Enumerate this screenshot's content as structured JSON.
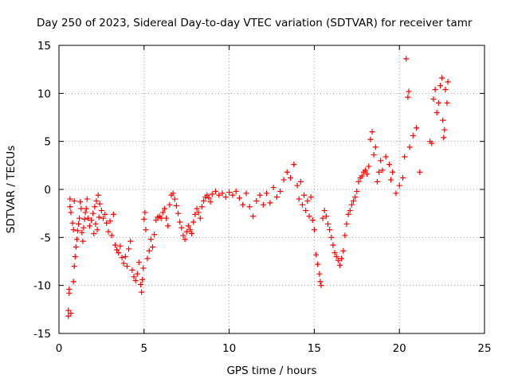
{
  "chart_data": {
    "type": "scatter",
    "title": "Day 250 of 2023, Sidereal Day-to-day VTEC variation (SDTVAR) for receiver tamr",
    "xlabel": "GPS time / hours",
    "ylabel": "SDTVAR / TECUs",
    "xlim": [
      0,
      25
    ],
    "ylim": [
      -15,
      15
    ],
    "xticks": [
      0,
      5,
      10,
      15,
      20,
      25
    ],
    "yticks": [
      -15,
      -10,
      -5,
      0,
      5,
      10,
      15
    ],
    "xtick_labels": [
      "0",
      "5",
      "10",
      "15",
      "20",
      "25"
    ],
    "ytick_labels": [
      "-15",
      "-10",
      "-5",
      "0",
      "5",
      "10",
      "15"
    ],
    "grid": true,
    "marker": "+",
    "color": "#ff0000",
    "series": [
      {
        "name": "SDTVAR",
        "points": [
          [
            0.55,
            -13.2
          ],
          [
            0.55,
            -12.6
          ],
          [
            0.6,
            -10.8
          ],
          [
            0.6,
            -10.4
          ],
          [
            0.65,
            -1.0
          ],
          [
            0.65,
            -1.8
          ],
          [
            0.7,
            -12.9
          ],
          [
            0.7,
            -2.4
          ],
          [
            0.8,
            -3.5
          ],
          [
            0.85,
            -4.2
          ],
          [
            0.85,
            -9.6
          ],
          [
            0.9,
            -8.0
          ],
          [
            0.9,
            -1.2
          ],
          [
            0.95,
            -7.0
          ],
          [
            1.0,
            -6.0
          ],
          [
            1.05,
            -5.2
          ],
          [
            1.1,
            -4.3
          ],
          [
            1.15,
            -3.6
          ],
          [
            1.2,
            -3.0
          ],
          [
            1.25,
            -1.3
          ],
          [
            1.3,
            -2.0
          ],
          [
            1.35,
            -4.5
          ],
          [
            1.4,
            -5.4
          ],
          [
            1.45,
            -4.0
          ],
          [
            1.5,
            -3.1
          ],
          [
            1.55,
            -2.4
          ],
          [
            1.6,
            -2.0
          ],
          [
            1.65,
            -1.0
          ],
          [
            1.7,
            -3.0
          ],
          [
            1.8,
            -3.8
          ],
          [
            1.9,
            -3.2
          ],
          [
            2.0,
            -2.5
          ],
          [
            2.05,
            -4.6
          ],
          [
            2.1,
            -1.8
          ],
          [
            2.15,
            -3.6
          ],
          [
            2.2,
            -1.2
          ],
          [
            2.25,
            -4.2
          ],
          [
            2.3,
            -0.6
          ],
          [
            2.35,
            -2.9
          ],
          [
            2.4,
            -1.5
          ],
          [
            2.5,
            -2.2
          ],
          [
            2.6,
            -3.0
          ],
          [
            2.7,
            -2.6
          ],
          [
            2.8,
            -3.5
          ],
          [
            2.9,
            -4.4
          ],
          [
            3.0,
            -3.3
          ],
          [
            3.1,
            -4.8
          ],
          [
            3.2,
            -2.6
          ],
          [
            3.3,
            -5.8
          ],
          [
            3.4,
            -6.3
          ],
          [
            3.5,
            -6.6
          ],
          [
            3.6,
            -5.9
          ],
          [
            3.7,
            -7.1
          ],
          [
            3.8,
            -7.7
          ],
          [
            3.9,
            -7.0
          ],
          [
            4.0,
            -8.0
          ],
          [
            4.1,
            -6.2
          ],
          [
            4.2,
            -5.4
          ],
          [
            4.3,
            -8.4
          ],
          [
            4.4,
            -9.1
          ],
          [
            4.5,
            -9.5
          ],
          [
            4.6,
            -8.8
          ],
          [
            4.7,
            -7.6
          ],
          [
            4.8,
            -9.9
          ],
          [
            4.85,
            -10.7
          ],
          [
            4.9,
            -9.4
          ],
          [
            4.95,
            -8.2
          ],
          [
            5.0,
            -3.1
          ],
          [
            5.05,
            -2.4
          ],
          [
            5.1,
            -4.2
          ],
          [
            5.2,
            -7.2
          ],
          [
            5.3,
            -6.4
          ],
          [
            5.4,
            -5.2
          ],
          [
            5.5,
            -6.0
          ],
          [
            5.6,
            -4.7
          ],
          [
            5.7,
            -3.2
          ],
          [
            5.8,
            -2.9
          ],
          [
            5.9,
            -2.8
          ],
          [
            6.0,
            -3.0
          ],
          [
            6.1,
            -2.4
          ],
          [
            6.2,
            -2.0
          ],
          [
            6.3,
            -3.0
          ],
          [
            6.4,
            -3.8
          ],
          [
            6.5,
            -1.6
          ],
          [
            6.6,
            -0.6
          ],
          [
            6.7,
            -0.4
          ],
          [
            6.8,
            -1.0
          ],
          [
            6.9,
            -1.7
          ],
          [
            7.0,
            -2.5
          ],
          [
            7.1,
            -3.4
          ],
          [
            7.2,
            -4.0
          ],
          [
            7.3,
            -4.8
          ],
          [
            7.4,
            -5.2
          ],
          [
            7.5,
            -4.4
          ],
          [
            7.6,
            -3.8
          ],
          [
            7.7,
            -4.2
          ],
          [
            7.8,
            -4.6
          ],
          [
            7.9,
            -3.4
          ],
          [
            8.0,
            -2.6
          ],
          [
            8.1,
            -2.0
          ],
          [
            8.2,
            -2.4
          ],
          [
            8.3,
            -3.0
          ],
          [
            8.4,
            -1.8
          ],
          [
            8.5,
            -1.2
          ],
          [
            8.6,
            -0.8
          ],
          [
            8.7,
            -0.6
          ],
          [
            8.8,
            -0.9
          ],
          [
            8.9,
            -1.3
          ],
          [
            9.0,
            -0.5
          ],
          [
            9.2,
            -0.2
          ],
          [
            9.4,
            -0.6
          ],
          [
            9.6,
            -0.4
          ],
          [
            9.8,
            -0.8
          ],
          [
            10.0,
            -0.3
          ],
          [
            10.2,
            -0.6
          ],
          [
            10.4,
            -0.2
          ],
          [
            10.6,
            -0.9
          ],
          [
            10.8,
            -1.6
          ],
          [
            11.0,
            -0.4
          ],
          [
            11.2,
            -1.8
          ],
          [
            11.4,
            -2.8
          ],
          [
            11.6,
            -1.2
          ],
          [
            11.8,
            -0.6
          ],
          [
            12.0,
            -1.6
          ],
          [
            12.2,
            -0.4
          ],
          [
            12.4,
            -1.4
          ],
          [
            12.6,
            0.2
          ],
          [
            12.8,
            -0.8
          ],
          [
            13.0,
            -0.2
          ],
          [
            13.2,
            1.0
          ],
          [
            13.4,
            1.8
          ],
          [
            13.6,
            1.2
          ],
          [
            13.8,
            2.6
          ],
          [
            14.0,
            0.4
          ],
          [
            14.1,
            -1.0
          ],
          [
            14.2,
            0.8
          ],
          [
            14.3,
            -1.6
          ],
          [
            14.4,
            -0.6
          ],
          [
            14.5,
            -2.2
          ],
          [
            14.6,
            -1.2
          ],
          [
            14.7,
            -2.8
          ],
          [
            14.8,
            -0.8
          ],
          [
            14.9,
            -3.2
          ],
          [
            15.0,
            -4.2
          ],
          [
            15.1,
            -6.8
          ],
          [
            15.2,
            -7.8
          ],
          [
            15.3,
            -8.8
          ],
          [
            15.35,
            -9.6
          ],
          [
            15.4,
            -10.0
          ],
          [
            15.5,
            -3.0
          ],
          [
            15.6,
            -2.2
          ],
          [
            15.7,
            -2.8
          ],
          [
            15.8,
            -3.6
          ],
          [
            15.9,
            -4.2
          ],
          [
            16.0,
            -5.0
          ],
          [
            16.1,
            -5.8
          ],
          [
            16.2,
            -6.6
          ],
          [
            16.3,
            -7.0
          ],
          [
            16.4,
            -7.4
          ],
          [
            16.5,
            -7.9
          ],
          [
            16.6,
            -7.2
          ],
          [
            16.7,
            -6.4
          ],
          [
            16.8,
            -4.8
          ],
          [
            16.9,
            -3.6
          ],
          [
            17.0,
            -2.6
          ],
          [
            17.1,
            -2.2
          ],
          [
            17.2,
            -1.6
          ],
          [
            17.3,
            -1.2
          ],
          [
            17.4,
            -0.8
          ],
          [
            17.5,
            -0.2
          ],
          [
            17.6,
            0.8
          ],
          [
            17.7,
            1.2
          ],
          [
            17.8,
            1.4
          ],
          [
            17.9,
            1.8
          ],
          [
            18.0,
            2.0
          ],
          [
            18.1,
            1.6
          ],
          [
            18.2,
            2.4
          ],
          [
            18.3,
            5.2
          ],
          [
            18.4,
            6.0
          ],
          [
            18.5,
            3.6
          ],
          [
            18.6,
            4.4
          ],
          [
            18.7,
            0.8
          ],
          [
            18.8,
            1.8
          ],
          [
            18.9,
            3.0
          ],
          [
            19.0,
            2.0
          ],
          [
            19.2,
            3.4
          ],
          [
            19.4,
            2.6
          ],
          [
            19.5,
            1.0
          ],
          [
            19.6,
            1.8
          ],
          [
            19.8,
            -0.4
          ],
          [
            20.0,
            0.4
          ],
          [
            20.2,
            1.2
          ],
          [
            20.3,
            3.4
          ],
          [
            20.4,
            13.6
          ],
          [
            20.5,
            9.6
          ],
          [
            20.55,
            10.2
          ],
          [
            20.6,
            4.4
          ],
          [
            20.8,
            5.6
          ],
          [
            21.0,
            6.4
          ],
          [
            21.2,
            1.8
          ],
          [
            21.8,
            5.0
          ],
          [
            21.9,
            4.8
          ],
          [
            22.0,
            9.4
          ],
          [
            22.1,
            10.4
          ],
          [
            22.2,
            8.0
          ],
          [
            22.3,
            9.0
          ],
          [
            22.4,
            10.8
          ],
          [
            22.5,
            11.6
          ],
          [
            22.55,
            7.2
          ],
          [
            22.6,
            5.4
          ],
          [
            22.65,
            6.2
          ],
          [
            22.7,
            10.4
          ],
          [
            22.8,
            9.0
          ],
          [
            22.85,
            11.2
          ]
        ]
      }
    ]
  }
}
